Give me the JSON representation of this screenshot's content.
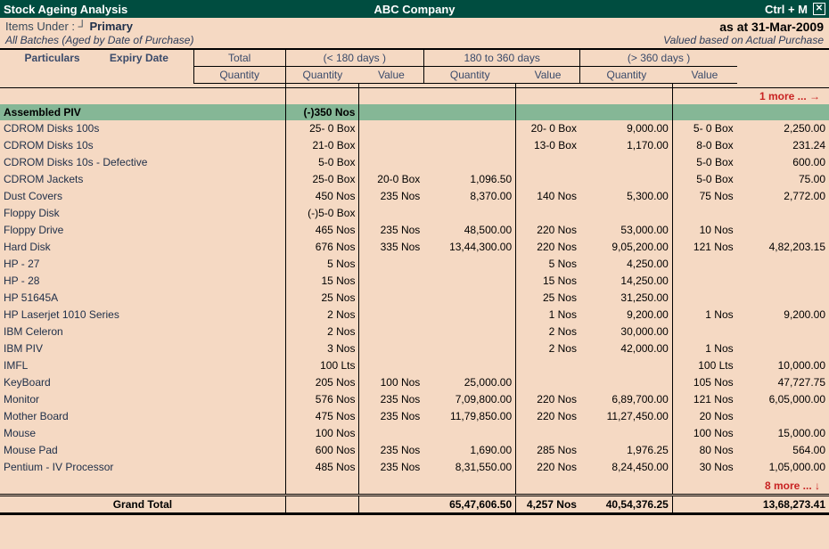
{
  "titlebar": {
    "left": "Stock Ageing Analysis",
    "center": "ABC Company",
    "shortcut": "Ctrl + M",
    "close": "✕"
  },
  "infobar": {
    "items_under_label": "Items Under :",
    "cursor_char": "┘",
    "primary": "Primary",
    "as_at": "as at 31-Mar-2009",
    "batches": "All Batches (Aged by Date of Purchase)",
    "valued": "Valued based on Actual Purchase"
  },
  "headers": {
    "particulars": "Particulars",
    "expiry": "Expiry Date",
    "total": "Total",
    "range1": "(< 180 days )",
    "range2": "180 to 360 days",
    "range3": "(> 360 days )",
    "quantity": "Quantity",
    "value": "Value"
  },
  "top_more": "1 more ... →",
  "bottom_more": "8 more ... ↓",
  "highlight_row": {
    "name": "Assembled PIV",
    "total": "(-)350 Nos"
  },
  "rows": [
    {
      "name": "CDROM Disks 100s",
      "total": "25- 0 Box",
      "q1": "",
      "v1": "",
      "q2": "20- 0 Box",
      "v2": "9,000.00",
      "q3": "5- 0 Box",
      "v3": "2,250.00"
    },
    {
      "name": "CDROM Disks 10s",
      "total": "21-0 Box",
      "q1": "",
      "v1": "",
      "q2": "13-0 Box",
      "v2": "1,170.00",
      "q3": "8-0 Box",
      "v3": "231.24"
    },
    {
      "name": "CDROM Disks 10s - Defective",
      "total": "5-0 Box",
      "q1": "",
      "v1": "",
      "q2": "",
      "v2": "",
      "q3": "5-0 Box",
      "v3": "600.00"
    },
    {
      "name": "CDROM Jackets",
      "total": "25-0 Box",
      "q1": "20-0 Box",
      "v1": "1,096.50",
      "q2": "",
      "v2": "",
      "q3": "5-0 Box",
      "v3": "75.00"
    },
    {
      "name": "Dust Covers",
      "total": "450 Nos",
      "q1": "235 Nos",
      "v1": "8,370.00",
      "q2": "140 Nos",
      "v2": "5,300.00",
      "q3": "75 Nos",
      "v3": "2,772.00"
    },
    {
      "name": "Floppy Disk",
      "total": "(-)5-0 Box",
      "q1": "",
      "v1": "",
      "q2": "",
      "v2": "",
      "q3": "",
      "v3": ""
    },
    {
      "name": "Floppy Drive",
      "total": "465 Nos",
      "q1": "235 Nos",
      "v1": "48,500.00",
      "q2": "220 Nos",
      "v2": "53,000.00",
      "q3": "10 Nos",
      "v3": ""
    },
    {
      "name": "Hard Disk",
      "total": "676 Nos",
      "q1": "335 Nos",
      "v1": "13,44,300.00",
      "q2": "220 Nos",
      "v2": "9,05,200.00",
      "q3": "121 Nos",
      "v3": "4,82,203.15"
    },
    {
      "name": "HP - 27",
      "total": "5 Nos",
      "q1": "",
      "v1": "",
      "q2": "5 Nos",
      "v2": "4,250.00",
      "q3": "",
      "v3": ""
    },
    {
      "name": "HP - 28",
      "total": "15 Nos",
      "q1": "",
      "v1": "",
      "q2": "15 Nos",
      "v2": "14,250.00",
      "q3": "",
      "v3": ""
    },
    {
      "name": "HP 51645A",
      "total": "25 Nos",
      "q1": "",
      "v1": "",
      "q2": "25 Nos",
      "v2": "31,250.00",
      "q3": "",
      "v3": ""
    },
    {
      "name": "HP Laserjet 1010 Series",
      "total": "2 Nos",
      "q1": "",
      "v1": "",
      "q2": "1 Nos",
      "v2": "9,200.00",
      "q3": "1 Nos",
      "v3": "9,200.00"
    },
    {
      "name": "IBM Celeron",
      "total": "2 Nos",
      "q1": "",
      "v1": "",
      "q2": "2 Nos",
      "v2": "30,000.00",
      "q3": "",
      "v3": ""
    },
    {
      "name": "IBM PIV",
      "total": "3 Nos",
      "q1": "",
      "v1": "",
      "q2": "2 Nos",
      "v2": "42,000.00",
      "q3": "1 Nos",
      "v3": ""
    },
    {
      "name": "IMFL",
      "total": "100 Lts",
      "q1": "",
      "v1": "",
      "q2": "",
      "v2": "",
      "q3": "100 Lts",
      "v3": "10,000.00"
    },
    {
      "name": "KeyBoard",
      "total": "205 Nos",
      "q1": "100 Nos",
      "v1": "25,000.00",
      "q2": "",
      "v2": "",
      "q3": "105 Nos",
      "v3": "47,727.75"
    },
    {
      "name": "Monitor",
      "total": "576 Nos",
      "q1": "235 Nos",
      "v1": "7,09,800.00",
      "q2": "220 Nos",
      "v2": "6,89,700.00",
      "q3": "121 Nos",
      "v3": "6,05,000.00"
    },
    {
      "name": "Mother Board",
      "total": "475 Nos",
      "q1": "235 Nos",
      "v1": "11,79,850.00",
      "q2": "220 Nos",
      "v2": "11,27,450.00",
      "q3": "20 Nos",
      "v3": ""
    },
    {
      "name": "Mouse",
      "total": "100 Nos",
      "q1": "",
      "v1": "",
      "q2": "",
      "v2": "",
      "q3": "100 Nos",
      "v3": "15,000.00"
    },
    {
      "name": "Mouse Pad",
      "total": "600 Nos",
      "q1": "235 Nos",
      "v1": "1,690.00",
      "q2": "285 Nos",
      "v2": "1,976.25",
      "q3": "80 Nos",
      "v3": "564.00"
    },
    {
      "name": "Pentium - IV Processor",
      "total": "485 Nos",
      "q1": "235 Nos",
      "v1": "8,31,550.00",
      "q2": "220 Nos",
      "v2": "8,24,450.00",
      "q3": "30 Nos",
      "v3": "1,05,000.00"
    }
  ],
  "grand_total": {
    "label": "Grand Total",
    "v1": "65,47,606.50",
    "q2": "4,257 Nos",
    "v2": "40,54,376.25",
    "v3": "13,68,273.41"
  }
}
